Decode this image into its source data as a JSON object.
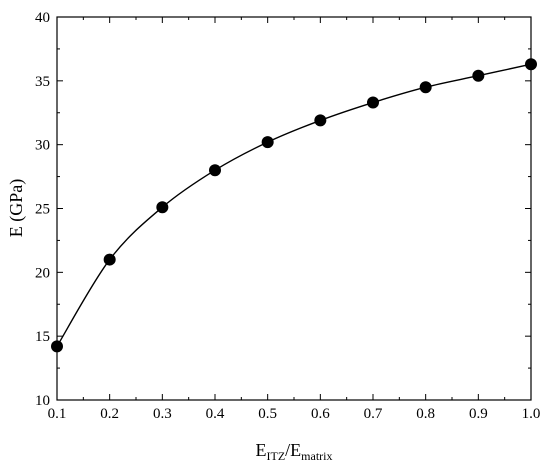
{
  "chart_data": {
    "type": "line",
    "title": "",
    "xlabel": {
      "main": "E",
      "sub1": "ITZ",
      "slash": "/E",
      "sub2": "matrix"
    },
    "ylabel": "E (GPa)",
    "xlim": [
      0.1,
      1.0
    ],
    "ylim": [
      10,
      40
    ],
    "xticks": [
      "0.1",
      "0.2",
      "0.3",
      "0.4",
      "0.5",
      "0.6",
      "0.7",
      "0.8",
      "0.9",
      "1.0"
    ],
    "yticks": [
      "10",
      "15",
      "20",
      "25",
      "30",
      "35",
      "40"
    ],
    "grid": false,
    "legend": "none",
    "marker_color": "#000000",
    "line_color": "#000000",
    "series": [
      {
        "x": [
          0.1,
          0.2,
          0.3,
          0.4,
          0.5,
          0.6,
          0.7,
          0.8,
          0.9,
          1.0
        ],
        "values": [
          14.2,
          21.0,
          25.1,
          28.0,
          30.2,
          31.9,
          33.3,
          34.5,
          35.4,
          36.3
        ]
      }
    ]
  }
}
